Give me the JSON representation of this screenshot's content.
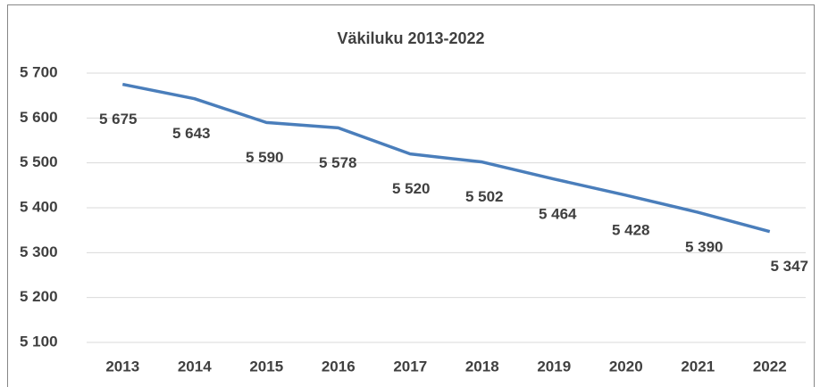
{
  "chart_data": {
    "type": "line",
    "title": "Väkiluku 2013-2022",
    "categories": [
      "2013",
      "2014",
      "2015",
      "2016",
      "2017",
      "2018",
      "2019",
      "2020",
      "2021",
      "2022"
    ],
    "series": [
      {
        "name": "Väkiluku",
        "color": "#4a7ebb",
        "values": [
          5675,
          5643,
          5590,
          5578,
          5520,
          5502,
          5464,
          5428,
          5390,
          5347
        ],
        "value_labels": [
          "5 675",
          "5 643",
          "5 590",
          "5 578",
          "5 520",
          "5 502",
          "5 464",
          "5 428",
          "5 390",
          "5 347"
        ]
      }
    ],
    "ylim": [
      5100,
      5700
    ],
    "yticks": [
      {
        "value": 5100,
        "label": "5 100"
      },
      {
        "value": 5200,
        "label": "5 200"
      },
      {
        "value": 5300,
        "label": "5 300"
      },
      {
        "value": 5400,
        "label": "5 400"
      },
      {
        "value": 5500,
        "label": "5 500"
      },
      {
        "value": 5600,
        "label": "5 600"
      },
      {
        "value": 5700,
        "label": "5 700"
      }
    ],
    "grid": true
  }
}
